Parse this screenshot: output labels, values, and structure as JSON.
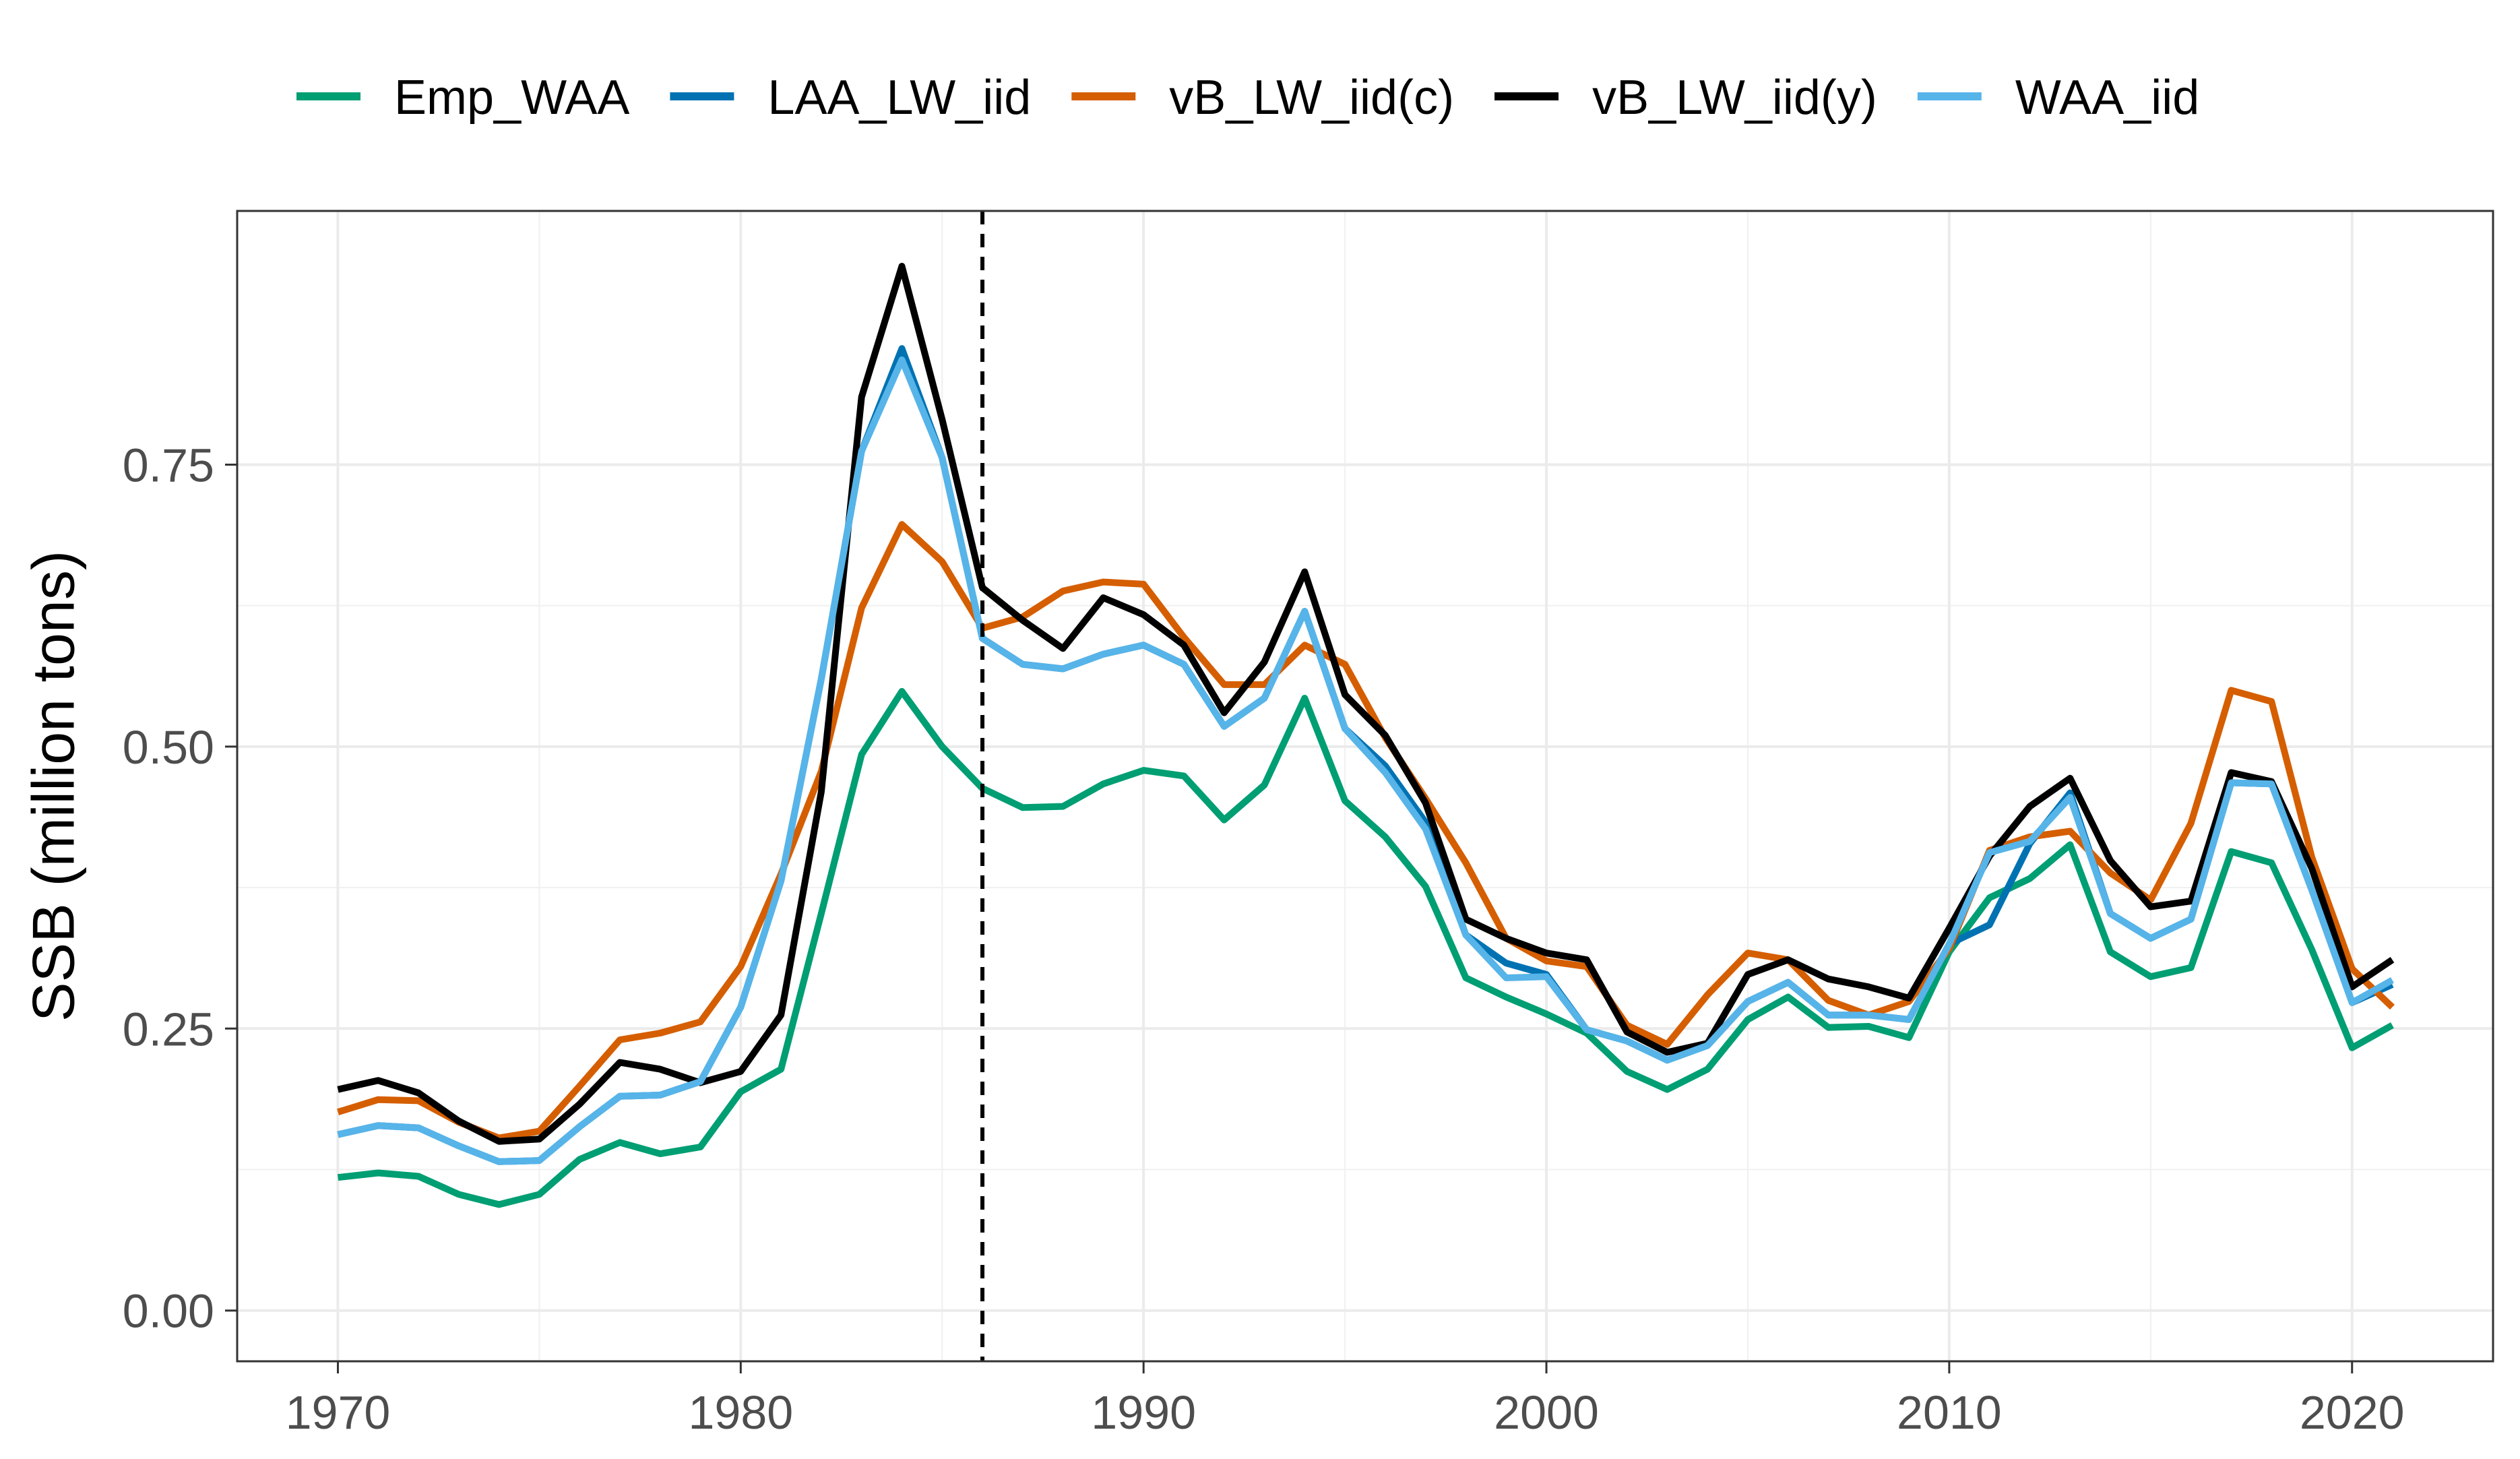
{
  "chart_data": {
    "type": "line",
    "title": "",
    "xlabel": "",
    "ylabel": "SSB (million tons)",
    "xlim": [
      1967.5,
      2023.5
    ],
    "ylim": [
      -0.045,
      0.975
    ],
    "xticks": [
      1970,
      1980,
      1990,
      2000,
      2010,
      2020
    ],
    "yticks": [
      0.0,
      0.25,
      0.5,
      0.75
    ],
    "ytick_labels": [
      "0.00",
      "0.25",
      "0.50",
      "0.75"
    ],
    "vline": 1986,
    "legend_position": "top",
    "x": [
      1970,
      1971,
      1972,
      1973,
      1974,
      1975,
      1976,
      1977,
      1978,
      1979,
      1980,
      1981,
      1982,
      1983,
      1984,
      1985,
      1986,
      1987,
      1988,
      1989,
      1990,
      1991,
      1992,
      1993,
      1994,
      1995,
      1996,
      1997,
      1998,
      1999,
      2000,
      2001,
      2002,
      2003,
      2004,
      2005,
      2006,
      2007,
      2008,
      2009,
      2010,
      2011,
      2012,
      2013,
      2014,
      2015,
      2016,
      2017,
      2018,
      2019,
      2020,
      2021
    ],
    "series": [
      {
        "name": "Emp_WAA",
        "color": "#009E73",
        "values": [
          0.118,
          0.122,
          0.119,
          0.103,
          0.094,
          0.103,
          0.134,
          0.149,
          0.139,
          0.145,
          0.194,
          0.214,
          0.352,
          0.493,
          0.549,
          0.5,
          0.463,
          0.446,
          0.447,
          0.467,
          0.479,
          0.474,
          0.435,
          0.466,
          0.543,
          0.452,
          0.42,
          0.376,
          0.295,
          0.278,
          0.263,
          0.246,
          0.212,
          0.196,
          0.214,
          0.258,
          0.278,
          0.251,
          0.252,
          0.242,
          0.318,
          0.366,
          0.383,
          0.413,
          0.318,
          0.296,
          0.304,
          0.407,
          0.397,
          0.32,
          0.233,
          0.253
        ]
      },
      {
        "name": "LAA_LW_iid",
        "color": "#0072B2",
        "values": [
          0.156,
          0.164,
          0.162,
          0.146,
          0.132,
          0.133,
          0.163,
          0.19,
          0.191,
          0.203,
          0.269,
          0.381,
          0.56,
          0.762,
          0.853,
          0.756,
          0.596,
          0.573,
          0.569,
          0.582,
          0.59,
          0.573,
          0.518,
          0.543,
          0.62,
          0.516,
          0.483,
          0.433,
          0.333,
          0.308,
          0.298,
          0.249,
          0.239,
          0.222,
          0.235,
          0.274,
          0.291,
          0.262,
          0.262,
          0.258,
          0.325,
          0.342,
          0.414,
          0.459,
          0.352,
          0.33,
          0.347,
          0.468,
          0.467,
          0.373,
          0.273,
          0.289
        ]
      },
      {
        "name": "vB_LW_iid(c)",
        "color": "#D55E00",
        "values": [
          0.176,
          0.187,
          0.186,
          0.167,
          0.153,
          0.159,
          0.199,
          0.24,
          0.246,
          0.256,
          0.305,
          0.387,
          0.478,
          0.623,
          0.697,
          0.664,
          0.605,
          0.615,
          0.638,
          0.646,
          0.644,
          0.597,
          0.555,
          0.555,
          0.59,
          0.573,
          0.508,
          0.454,
          0.397,
          0.33,
          0.31,
          0.305,
          0.253,
          0.236,
          0.28,
          0.317,
          0.311,
          0.275,
          0.262,
          0.274,
          0.321,
          0.408,
          0.42,
          0.425,
          0.388,
          0.364,
          0.432,
          0.55,
          0.54,
          0.402,
          0.303,
          0.269
        ]
      },
      {
        "name": "vB_LW_iid(y)",
        "color": "#000000",
        "values": [
          0.196,
          0.204,
          0.193,
          0.168,
          0.15,
          0.152,
          0.183,
          0.22,
          0.214,
          0.202,
          0.212,
          0.262,
          0.46,
          0.81,
          0.926,
          0.79,
          0.641,
          0.612,
          0.587,
          0.632,
          0.617,
          0.59,
          0.53,
          0.575,
          0.655,
          0.546,
          0.51,
          0.45,
          0.347,
          0.33,
          0.317,
          0.311,
          0.247,
          0.229,
          0.237,
          0.298,
          0.311,
          0.294,
          0.287,
          0.277,
          0.339,
          0.403,
          0.447,
          0.472,
          0.399,
          0.358,
          0.363,
          0.477,
          0.469,
          0.392,
          0.287,
          0.311
        ]
      },
      {
        "name": "WAA_iid",
        "color": "#56B4E9",
        "values": [
          0.156,
          0.164,
          0.162,
          0.146,
          0.132,
          0.133,
          0.163,
          0.19,
          0.191,
          0.203,
          0.269,
          0.381,
          0.56,
          0.762,
          0.843,
          0.756,
          0.596,
          0.573,
          0.569,
          0.582,
          0.59,
          0.573,
          0.518,
          0.543,
          0.62,
          0.516,
          0.477,
          0.427,
          0.333,
          0.295,
          0.296,
          0.249,
          0.239,
          0.222,
          0.235,
          0.274,
          0.291,
          0.262,
          0.262,
          0.258,
          0.325,
          0.406,
          0.416,
          0.455,
          0.352,
          0.33,
          0.347,
          0.468,
          0.467,
          0.373,
          0.273,
          0.293
        ]
      }
    ]
  }
}
